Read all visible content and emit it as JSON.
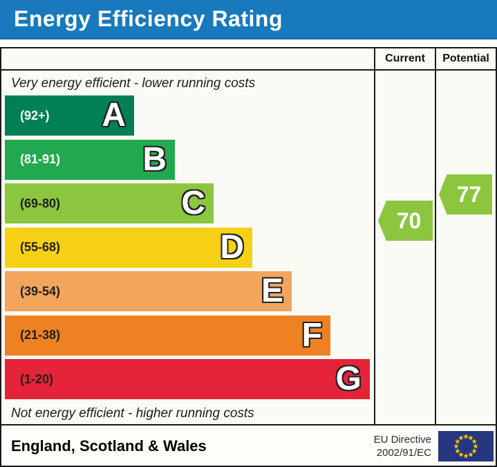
{
  "title": "Energy Efficiency Rating",
  "columns": {
    "current": "Current",
    "potential": "Potential"
  },
  "notes": {
    "top": "Very energy efficient - lower running costs",
    "bottom": "Not energy efficient - higher running costs"
  },
  "bands": [
    {
      "letter": "A",
      "range": "(92+)",
      "color": "#008054",
      "label_color": "#ffffff",
      "bar_length": 187
    },
    {
      "letter": "B",
      "range": "(81-91)",
      "color": "#22a94f",
      "label_color": "#ffffff",
      "bar_length": 246
    },
    {
      "letter": "C",
      "range": "(69-80)",
      "color": "#8cc63f",
      "label_color": "#1f1f1f",
      "bar_length": 302
    },
    {
      "letter": "D",
      "range": "(55-68)",
      "color": "#f6d013",
      "label_color": "#1f1f1f",
      "bar_length": 358
    },
    {
      "letter": "E",
      "range": "(39-54)",
      "color": "#f3a55c",
      "label_color": "#1f1f1f",
      "bar_length": 415
    },
    {
      "letter": "F",
      "range": "(21-38)",
      "color": "#ee8223",
      "label_color": "#1f1f1f",
      "bar_length": 471
    },
    {
      "letter": "G",
      "range": "(1-20)",
      "color": "#e52339",
      "label_color": "#1f1f1f",
      "bar_length": 528
    }
  ],
  "ratings": {
    "current": {
      "value": "70",
      "band": "C",
      "color": "#8cc63f"
    },
    "potential": {
      "value": "77",
      "band": "C",
      "color": "#8cc63f"
    }
  },
  "footer": {
    "region": "England, Scotland & Wales",
    "directive_line1": "EU Directive",
    "directive_line2": "2002/91/EC",
    "flag_blue": "#263780",
    "flag_star": "#ffcc00"
  },
  "chart_data": {
    "type": "bar",
    "title": "Energy Efficiency Rating",
    "orientation": "horizontal",
    "categories": [
      "A",
      "B",
      "C",
      "D",
      "E",
      "F",
      "G"
    ],
    "band_score_ranges": [
      "92+",
      "81-91",
      "69-80",
      "55-68",
      "39-54",
      "21-38",
      "1-20"
    ],
    "band_colors": [
      "#008054",
      "#22a94f",
      "#8cc63f",
      "#f6d013",
      "#f3a55c",
      "#ee8223",
      "#e52339"
    ],
    "series": [
      {
        "name": "Current",
        "value": 70,
        "band": "C"
      },
      {
        "name": "Potential",
        "value": 77,
        "band": "C"
      }
    ],
    "footnote": "EU Directive 2002/91/EC",
    "region": "England, Scotland & Wales"
  }
}
